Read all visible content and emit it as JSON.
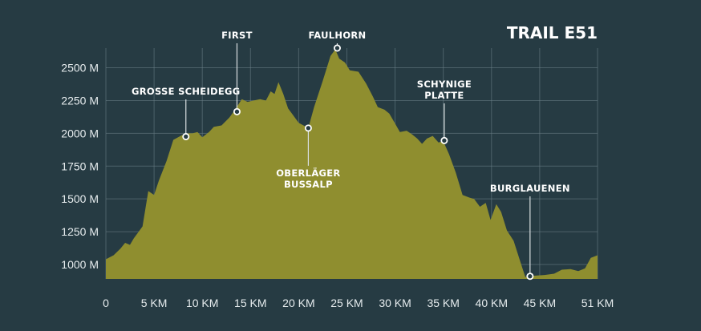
{
  "chart_data": {
    "type": "area",
    "title": "TRAIL E51",
    "xlabel": "",
    "ylabel": "",
    "xlim": [
      0,
      51
    ],
    "ylim": [
      890,
      2650
    ],
    "x_ticks": [
      0,
      5,
      10,
      15,
      20,
      25,
      30,
      35,
      40,
      45,
      51
    ],
    "x_tick_labels": [
      "0",
      "5 KM",
      "10 KM",
      "15 KM",
      "20 KM",
      "25 KM",
      "30 KM",
      "35 KM",
      "40 KM",
      "45 KM",
      "51 KM"
    ],
    "y_ticks": [
      1000,
      1250,
      1500,
      1750,
      2000,
      2250,
      2500
    ],
    "y_tick_labels": [
      "1000 M",
      "1250 M",
      "1500 M",
      "1750 M",
      "2000 M",
      "2250 M",
      "2500 M"
    ],
    "grid": true,
    "colors": {
      "background": "#263b43",
      "area": "#8f8e2f"
    },
    "profile": {
      "x": [
        0,
        0.8,
        1.5,
        2.0,
        2.5,
        2.9,
        3.3,
        3.8,
        4.4,
        5.0,
        5.5,
        6.3,
        7.0,
        7.5,
        8.0,
        8.5,
        9.0,
        9.5,
        10.0,
        10.7,
        11.2,
        12.0,
        12.8,
        13.3,
        14.1,
        14.7,
        15.3,
        16.0,
        16.6,
        17.1,
        17.5,
        17.9,
        18.4,
        18.9,
        19.3,
        20.0,
        20.5,
        21.0,
        21.6,
        22.5,
        23.3,
        23.8,
        24.2,
        24.8,
        25.3,
        26.2,
        27.0,
        27.7,
        28.2,
        28.9,
        29.4,
        29.8,
        30.5,
        31.2,
        31.8,
        32.3,
        32.8,
        33.3,
        33.9,
        34.5,
        35.0,
        35.6,
        36.3,
        37.0,
        37.7,
        38.2,
        38.8,
        39.4,
        39.9,
        40.5,
        41.0,
        41.6,
        42.3,
        43.0,
        43.5,
        44.0,
        44.6,
        45.5,
        46.5,
        47.3,
        48.2,
        49.0,
        49.7,
        50.3,
        51.0
      ],
      "y": [
        1040,
        1070,
        1120,
        1165,
        1150,
        1200,
        1240,
        1290,
        1560,
        1530,
        1640,
        1790,
        1950,
        1970,
        1990,
        2000,
        2000,
        2010,
        1970,
        2010,
        2050,
        2060,
        2120,
        2170,
        2260,
        2240,
        2250,
        2260,
        2250,
        2320,
        2300,
        2390,
        2300,
        2190,
        2150,
        2080,
        2060,
        2040,
        2200,
        2400,
        2590,
        2640,
        2570,
        2540,
        2480,
        2470,
        2380,
        2280,
        2200,
        2180,
        2150,
        2100,
        2010,
        2020,
        1990,
        1960,
        1920,
        1960,
        1980,
        1930,
        1940,
        1840,
        1700,
        1530,
        1510,
        1500,
        1440,
        1470,
        1340,
        1460,
        1400,
        1260,
        1180,
        1020,
        905,
        910,
        915,
        920,
        930,
        960,
        965,
        950,
        970,
        1050,
        1070
      ]
    },
    "annotations": [
      {
        "label_lines": [
          "GROSSE SCHEIDEGG"
        ],
        "x": 8.3,
        "y": 1975,
        "position": "above"
      },
      {
        "label_lines": [
          "FIRST"
        ],
        "x": 13.6,
        "y": 2165,
        "position": "above"
      },
      {
        "label_lines": [
          "FAULHORN"
        ],
        "x": 24.0,
        "y": 2650,
        "position": "above"
      },
      {
        "label_lines": [
          "OBERLÄGER",
          "BUSSALP"
        ],
        "x": 21.0,
        "y": 2040,
        "position": "below"
      },
      {
        "label_lines": [
          "SCHYNIGE",
          "PLATTE"
        ],
        "x": 35.1,
        "y": 1945,
        "position": "above"
      },
      {
        "label_lines": [
          "BURGLAUENEN"
        ],
        "x": 44.0,
        "y": 910,
        "position": "above"
      }
    ]
  }
}
